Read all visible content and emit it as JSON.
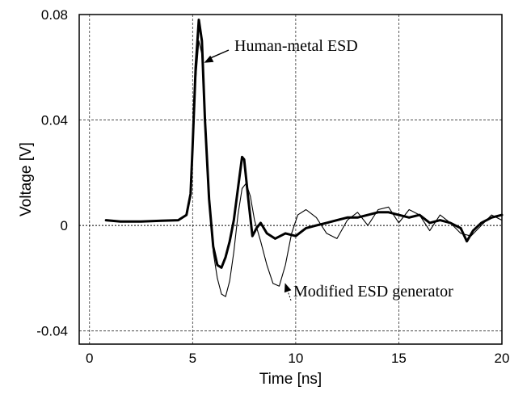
{
  "chart_data": {
    "type": "line",
    "title": "",
    "xlabel": "Time [ns]",
    "ylabel": "Voltage [V]",
    "xlim": [
      -0.5,
      20
    ],
    "ylim": [
      -0.045,
      0.08
    ],
    "grid": true,
    "x_ticks": [
      "0",
      "5",
      "10",
      "15",
      "20"
    ],
    "y_ticks": [
      "0.08",
      "0.04",
      "0",
      "-0.04"
    ],
    "annotations": [
      {
        "text": "Human-metal ESD",
        "points_to": [
          5.4,
          0.066
        ]
      },
      {
        "text": "Modified ESD generator",
        "points_to": [
          9.4,
          -0.02
        ]
      }
    ],
    "series": [
      {
        "name": "Human-metal ESD",
        "style": "thick",
        "x": [
          0.8,
          1.5,
          2.5,
          3.5,
          4.3,
          4.7,
          4.9,
          5.0,
          5.15,
          5.3,
          5.45,
          5.6,
          5.8,
          6.0,
          6.2,
          6.4,
          6.6,
          6.8,
          7.0,
          7.2,
          7.4,
          7.5,
          7.7,
          7.9,
          8.1,
          8.3,
          8.6,
          9.0,
          9.5,
          10.0,
          10.5,
          11.0,
          11.5,
          12.0,
          12.5,
          13.0,
          13.5,
          14.0,
          14.5,
          15.0,
          15.5,
          16.0,
          16.5,
          17.0,
          17.5,
          18.0,
          18.3,
          18.6,
          19.0,
          19.5,
          20.0
        ],
        "y": [
          0.002,
          0.0015,
          0.0015,
          0.0018,
          0.002,
          0.004,
          0.012,
          0.03,
          0.06,
          0.078,
          0.07,
          0.04,
          0.01,
          -0.008,
          -0.015,
          -0.016,
          -0.012,
          -0.006,
          0.002,
          0.014,
          0.026,
          0.025,
          0.01,
          -0.004,
          -0.001,
          0.001,
          -0.003,
          -0.005,
          -0.003,
          -0.004,
          -0.001,
          0.0,
          0.001,
          0.002,
          0.003,
          0.003,
          0.004,
          0.005,
          0.005,
          0.004,
          0.003,
          0.004,
          0.001,
          0.002,
          0.001,
          -0.001,
          -0.006,
          -0.002,
          0.001,
          0.003,
          0.004
        ]
      },
      {
        "name": "Modified ESD generator",
        "style": "thin",
        "x": [
          0.8,
          1.5,
          2.5,
          3.5,
          4.3,
          4.7,
          4.9,
          5.0,
          5.15,
          5.3,
          5.45,
          5.6,
          5.8,
          6.0,
          6.2,
          6.4,
          6.6,
          6.8,
          7.0,
          7.2,
          7.4,
          7.6,
          7.8,
          8.0,
          8.3,
          8.6,
          8.9,
          9.2,
          9.5,
          9.8,
          10.1,
          10.5,
          11.0,
          11.5,
          12.0,
          12.5,
          13.0,
          13.5,
          14.0,
          14.5,
          15.0,
          15.5,
          16.0,
          16.5,
          17.0,
          17.5,
          18.0,
          18.5,
          19.0,
          19.5,
          20.0
        ],
        "y": [
          0.002,
          0.0015,
          0.0015,
          0.0018,
          0.002,
          0.004,
          0.012,
          0.03,
          0.055,
          0.07,
          0.065,
          0.04,
          0.01,
          -0.01,
          -0.02,
          -0.026,
          -0.027,
          -0.021,
          -0.01,
          0.004,
          0.014,
          0.016,
          0.011,
          0.002,
          -0.006,
          -0.015,
          -0.022,
          -0.023,
          -0.015,
          -0.003,
          0.004,
          0.006,
          0.003,
          -0.003,
          -0.005,
          0.002,
          0.005,
          0.0,
          0.006,
          0.007,
          0.001,
          0.006,
          0.004,
          -0.002,
          0.004,
          0.001,
          -0.003,
          -0.004,
          0.0,
          0.004,
          0.002
        ]
      }
    ]
  }
}
